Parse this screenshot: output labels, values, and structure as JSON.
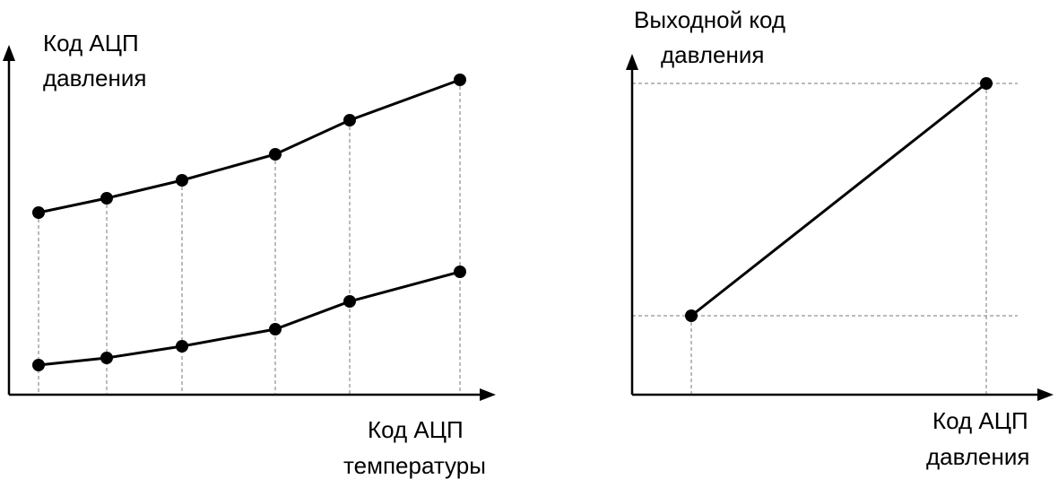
{
  "left_chart": {
    "y_label": [
      "Код АЦП",
      "давления"
    ],
    "x_label": [
      "Код АЦП",
      "температуры"
    ]
  },
  "right_chart": {
    "y_label": [
      "Выходной код",
      "давления"
    ],
    "x_label": [
      "Код АЦП",
      "давления"
    ]
  }
}
